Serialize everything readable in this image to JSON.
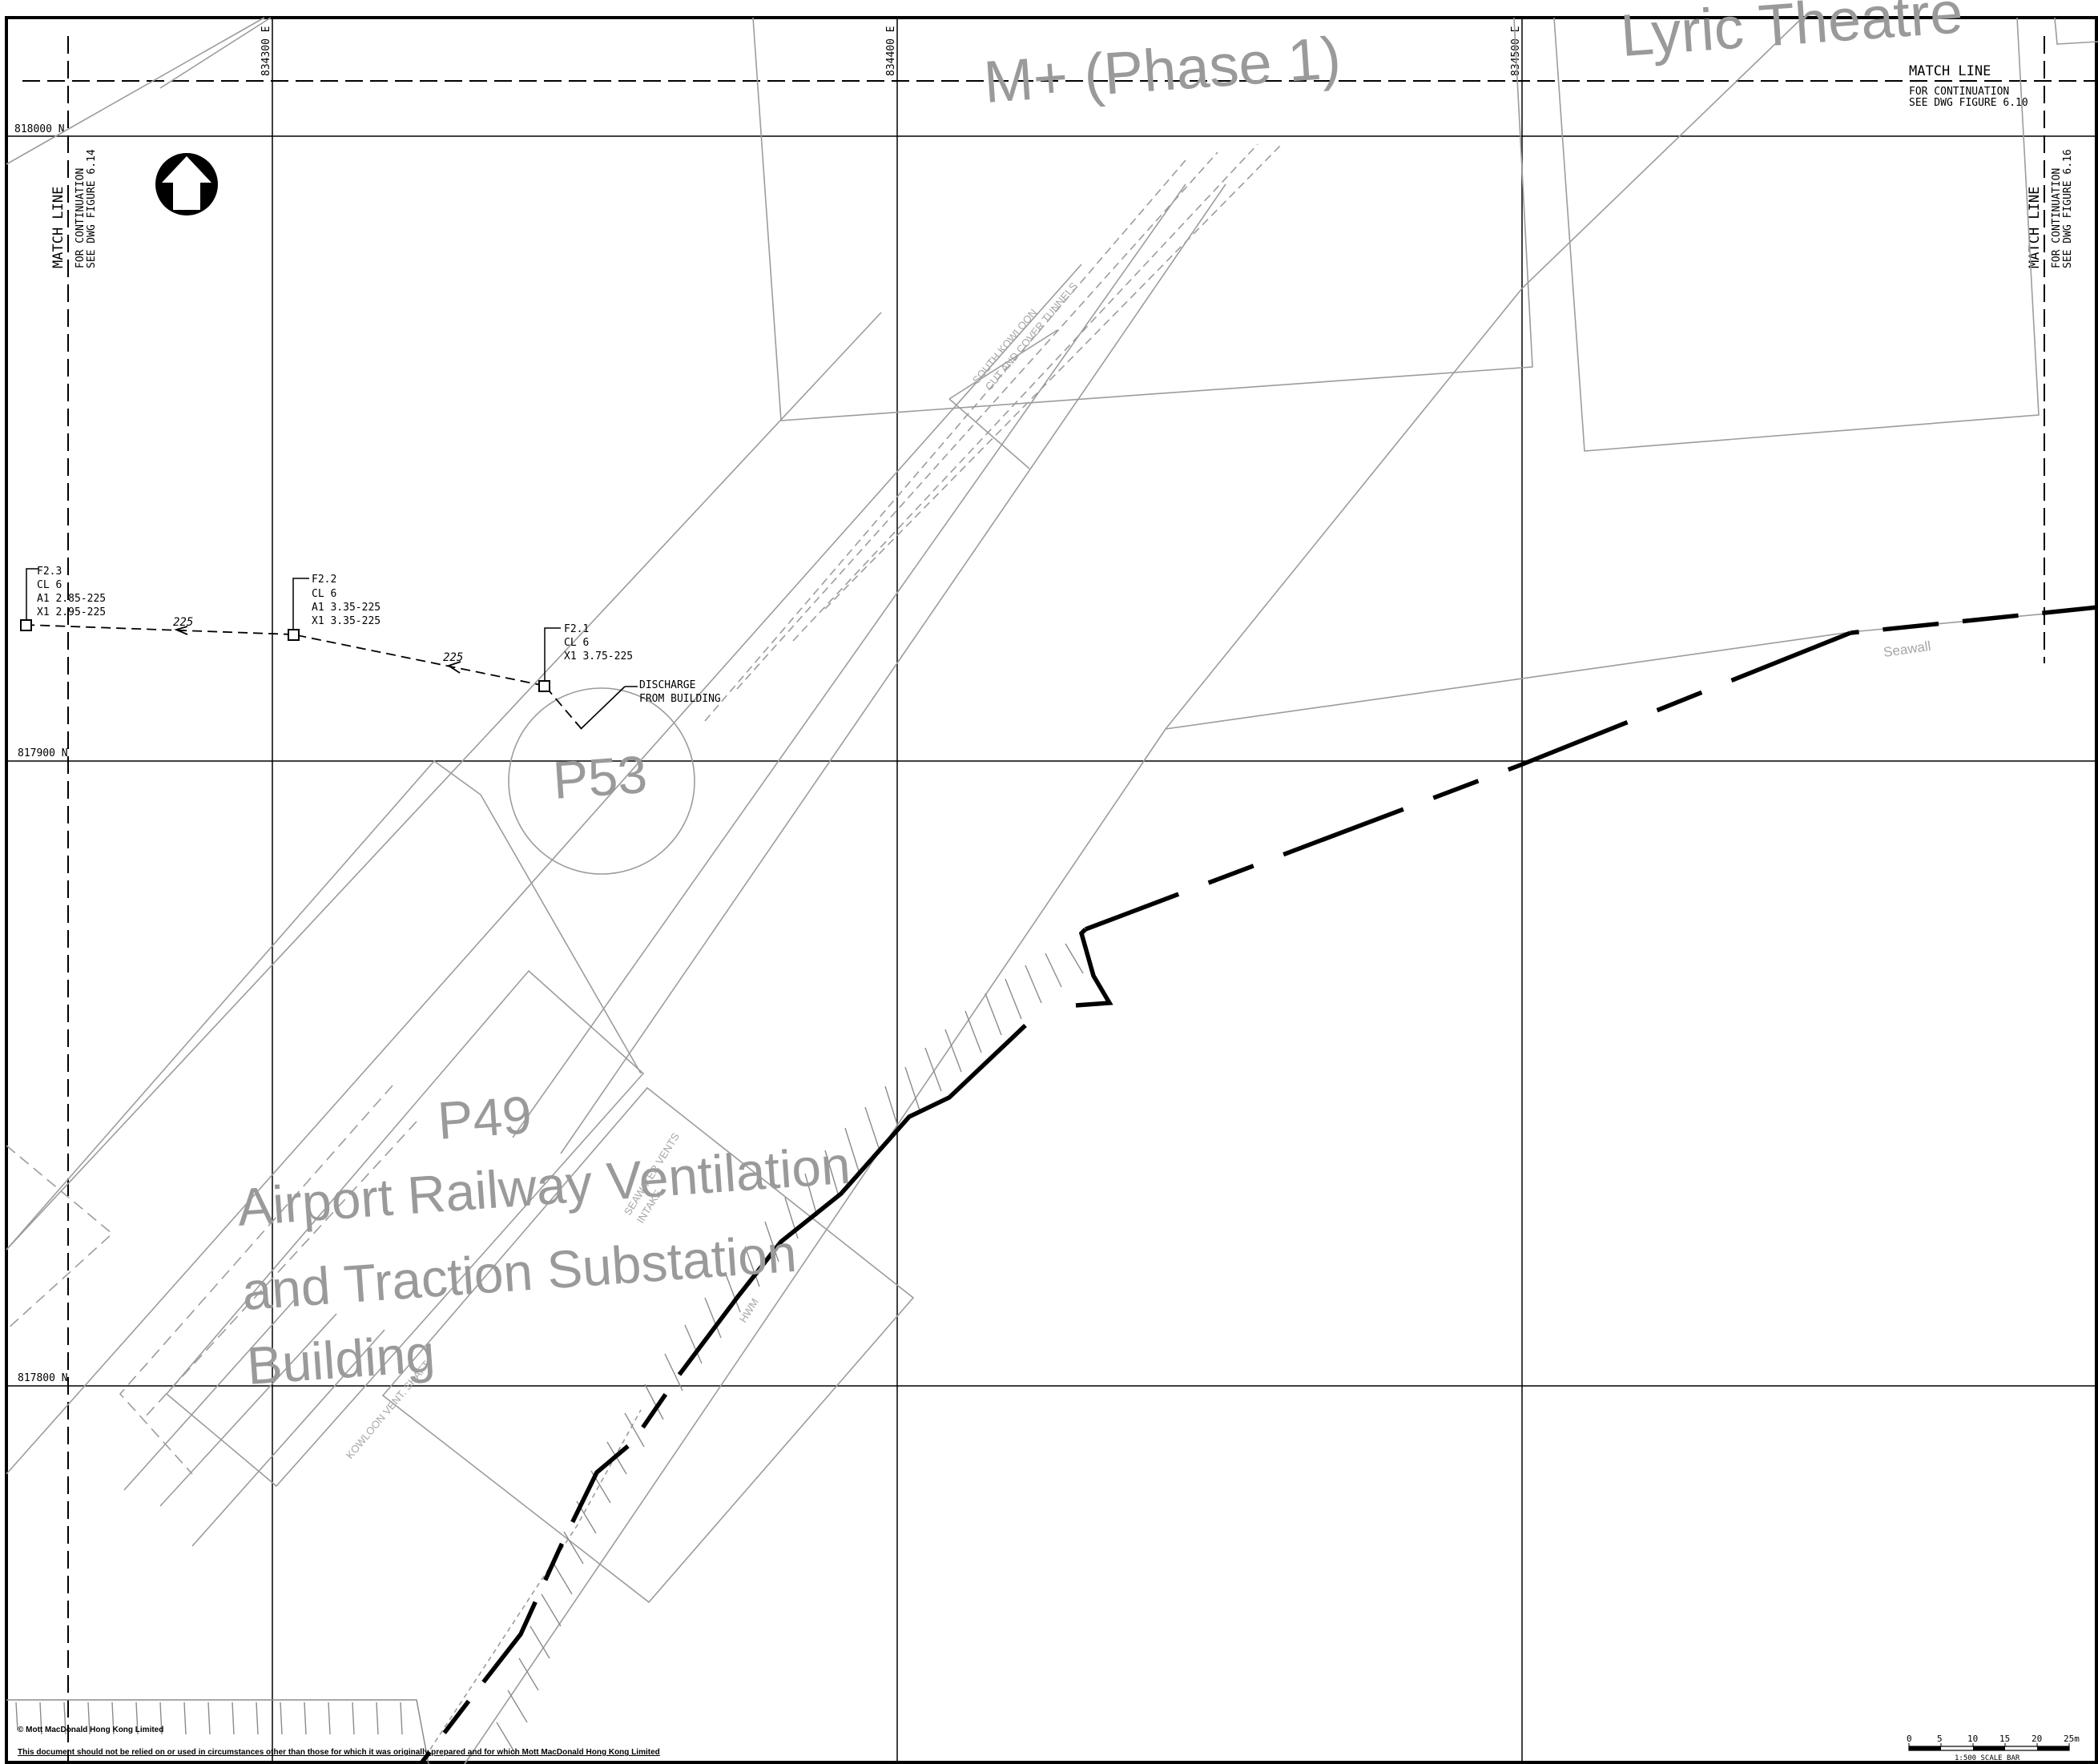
{
  "grid": {
    "eastings": [
      "834300 E",
      "834400 E",
      "834500 E"
    ],
    "northings": [
      "818000 N",
      "817900 N",
      "817800 N"
    ]
  },
  "match_lines": {
    "top": {
      "title": "MATCH LINE",
      "line1": "FOR CONTINUATION",
      "line2": "SEE DWG FIGURE 6.10"
    },
    "left": {
      "title": "MATCH LINE",
      "line1": "FOR CONTINUATION",
      "line2": "SEE DWG FIGURE 6.14"
    },
    "right": {
      "title": "MATCH LINE",
      "line1": "FOR CONTINUATION",
      "line2": "SEE DWG FIGURE 6.16"
    }
  },
  "sites": {
    "m_plus": "M+ (Phase 1)",
    "lyric": "Lyric Theatre",
    "p53": "P53",
    "p49": "P49",
    "p49_line1": "Airport Railway Ventilation",
    "p49_line2": "and Traction Substation",
    "p49_line3": "Building"
  },
  "manholes": [
    {
      "id": "F2.3",
      "cl": "CL 6",
      "a1": "A1 2.85-225",
      "x1": "X1 2.95-225"
    },
    {
      "id": "F2.2",
      "cl": "CL 6",
      "a1": "A1 3.35-225",
      "x1": "X1 3.35-225"
    },
    {
      "id": "F2.1",
      "cl": "CL 6",
      "x1": "X1 3.75-225"
    }
  ],
  "pipe_labels": [
    "225",
    "225"
  ],
  "discharge": {
    "line1": "DISCHARGE",
    "line2": "FROM BUILDING"
  },
  "features": {
    "tunnels_line1": "SOUTH KOWLOON",
    "tunnels_line2": "CUT AND COVER TUNNELS",
    "seawall": "Seawall",
    "hwm": "HWM",
    "vents_line1": "SEAWATER VENTS",
    "vents_line2": "INTAKE",
    "kowloon_vent": "KOWLOON VENT. SHAFT"
  },
  "scale_bar": {
    "ticks": [
      "0",
      "5",
      "10",
      "15",
      "20",
      "25m"
    ],
    "caption": "1:500 SCALE BAR"
  },
  "legal": {
    "copyright": "© Mott MacDonald Hong Kong Limited",
    "disclaimer": "This document should not be relied on or used in circumstances other than those for which it was originally prepared and for which Mott MacDonald Hong Kong Limited"
  }
}
